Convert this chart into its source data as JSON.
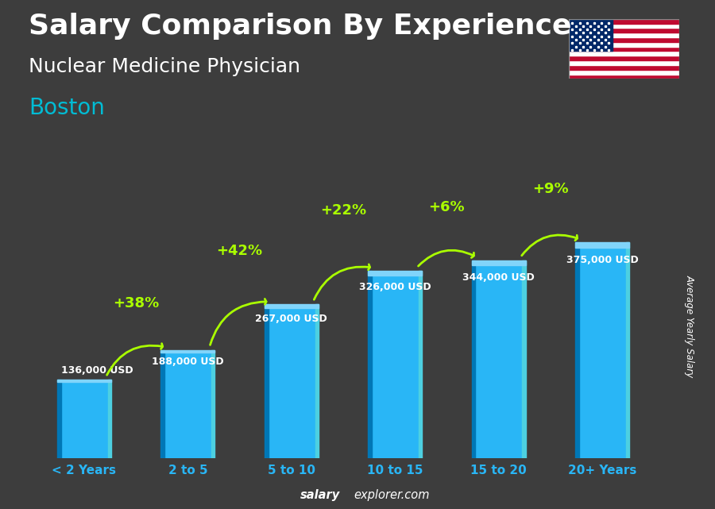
{
  "title_line1": "Salary Comparison By Experience",
  "title_line2": "Nuclear Medicine Physician",
  "city": "Boston",
  "categories": [
    "< 2 Years",
    "2 to 5",
    "5 to 10",
    "10 to 15",
    "15 to 20",
    "20+ Years"
  ],
  "values": [
    136000,
    188000,
    267000,
    326000,
    344000,
    375000
  ],
  "labels": [
    "136,000 USD",
    "188,000 USD",
    "267,000 USD",
    "326,000 USD",
    "344,000 USD",
    "375,000 USD"
  ],
  "pct_changes": [
    "+38%",
    "+42%",
    "+22%",
    "+6%",
    "+9%"
  ],
  "bar_color_main": "#29b6f6",
  "bar_color_left": "#0077b6",
  "bar_color_right": "#4dd0e1",
  "bar_color_top": "#81d4fa",
  "background_color": "#3d3d3d",
  "arrow_color": "#aaff00",
  "ylabel": "Average Yearly Salary",
  "footer_bold": "salary",
  "footer_regular": "explorer.com",
  "title_fontsize": 26,
  "subtitle_fontsize": 18,
  "city_fontsize": 20,
  "bar_width": 0.52,
  "ylim": [
    0,
    460000
  ],
  "label_fontsize": 9,
  "pct_fontsize": 13,
  "xlabel_fontsize": 11
}
